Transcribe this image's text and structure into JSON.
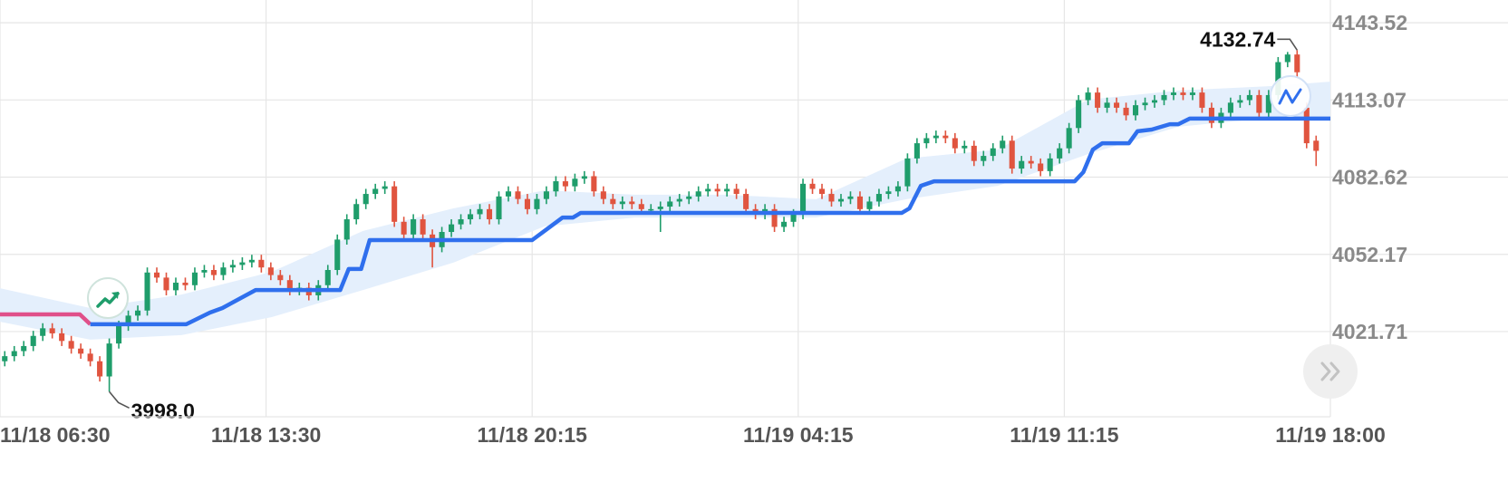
{
  "chart_data": {
    "type": "candlestick",
    "xlim": [
      0,
      140
    ],
    "ylim": [
      3988.1,
      4152.5
    ],
    "xticks": [
      {
        "value": 0,
        "label": "11/18 06:30"
      },
      {
        "value": 28,
        "label": "11/18 13:30"
      },
      {
        "value": 56,
        "label": "11/18 20:15"
      },
      {
        "value": 84,
        "label": "11/19 04:15"
      },
      {
        "value": 112,
        "label": "11/19 11:15"
      },
      {
        "value": 140,
        "label": "11/19 18:00"
      }
    ],
    "yticks": [
      4021.71,
      4052.17,
      4082.62,
      4113.07,
      4143.52
    ],
    "grid": true,
    "up_color": "#1f9d6b",
    "down_color": "#e0543f",
    "candles": {
      "open": [
        4010,
        4012,
        4014,
        4016,
        4020,
        4023,
        4021,
        4018,
        4015,
        4013,
        4010,
        4004,
        4017,
        4024,
        4028,
        4030,
        4045,
        4043,
        4038,
        4041,
        4040,
        4045,
        4046,
        4044,
        4047,
        4048,
        4049,
        4050,
        4047,
        4044,
        4042,
        4038,
        4039,
        4036,
        4040,
        4046,
        4058,
        4066,
        4072,
        4076,
        4078,
        4079,
        4065,
        4060,
        4066,
        4060,
        4055,
        4061,
        4064,
        4066,
        4068,
        4070,
        4066,
        4075,
        4077,
        4074,
        4070,
        4074,
        4077,
        4081,
        4079,
        4082,
        4083,
        4077,
        4074,
        4072,
        4073,
        4072,
        4070,
        4070,
        4071,
        4073,
        4074,
        4075,
        4077,
        4078,
        4077,
        4078,
        4076,
        4070,
        4068,
        4070,
        4063,
        4065,
        4068,
        4080,
        4078,
        4076,
        4073,
        4074,
        4075,
        4070,
        4073,
        4076,
        4077,
        4079,
        4090,
        4096,
        4098,
        4099,
        4098,
        4094,
        4095,
        4089,
        4091,
        4094,
        4097,
        4086,
        4089,
        4088,
        4085,
        4090,
        4094,
        4102,
        4113,
        4116,
        4110,
        4112,
        4110,
        4107,
        4111,
        4112,
        4113,
        4115,
        4116,
        4115,
        4116,
        4110,
        4104,
        4108,
        4112,
        4113,
        4115,
        4108,
        4115,
        4128,
        4131,
        4110,
        4097
      ],
      "high": [
        4014,
        4016,
        4018,
        4022,
        4025,
        4025,
        4023,
        4020,
        4017,
        4015,
        4012,
        4019,
        4026,
        4030,
        4032,
        4047,
        4047,
        4045,
        4043,
        4043,
        4047,
        4048,
        4048,
        4049,
        4050,
        4051,
        4052,
        4052,
        4049,
        4046,
        4044,
        4041,
        4041,
        4042,
        4048,
        4060,
        4068,
        4074,
        4078,
        4080,
        4081,
        4081,
        4067,
        4068,
        4068,
        4062,
        4063,
        4066,
        4068,
        4070,
        4072,
        4072,
        4077,
        4079,
        4079,
        4076,
        4076,
        4079,
        4083,
        4083,
        4084,
        4085,
        4085,
        4079,
        4076,
        4075,
        4075,
        4074,
        4072,
        4073,
        4075,
        4076,
        4077,
        4079,
        4080,
        4080,
        4080,
        4080,
        4078,
        4072,
        4072,
        4072,
        4067,
        4070,
        4082,
        4082,
        4080,
        4078,
        4076,
        4077,
        4077,
        4075,
        4078,
        4079,
        4081,
        4092,
        4098,
        4100,
        4101,
        4101,
        4100,
        4097,
        4097,
        4093,
        4096,
        4099,
        4099,
        4091,
        4091,
        4090,
        4092,
        4096,
        4104,
        4115,
        4118,
        4118,
        4114,
        4114,
        4112,
        4113,
        4114,
        4115,
        4117,
        4118,
        4118,
        4118,
        4118,
        4112,
        4110,
        4114,
        4115,
        4117,
        4117,
        4117,
        4130,
        4132,
        4132.74,
        4112,
        4099
      ],
      "low": [
        4008,
        4010,
        4012,
        4014,
        4018,
        4019,
        4016,
        4013,
        4011,
        4008,
        4002,
        3998.0,
        4015,
        4022,
        4026,
        4028,
        4041,
        4036,
        4036,
        4038,
        4038,
        4043,
        4042,
        4042,
        4045,
        4046,
        4047,
        4045,
        4042,
        4040,
        4036,
        4036,
        4034,
        4034,
        4038,
        4044,
        4056,
        4064,
        4070,
        4074,
        4076,
        4063,
        4058,
        4058,
        4058,
        4047,
        4053,
        4059,
        4062,
        4064,
        4066,
        4064,
        4064,
        4073,
        4072,
        4068,
        4068,
        4072,
        4075,
        4077,
        4077,
        4080,
        4075,
        4072,
        4070,
        4070,
        4070,
        4068,
        4068,
        4061,
        4069,
        4071,
        4072,
        4073,
        4075,
        4075,
        4075,
        4074,
        4068,
        4066,
        4066,
        4061,
        4061,
        4063,
        4066,
        4076,
        4074,
        4071,
        4071,
        4072,
        4068,
        4068,
        4071,
        4074,
        4075,
        4077,
        4088,
        4094,
        4096,
        4096,
        4092,
        4092,
        4087,
        4087,
        4089,
        4092,
        4084,
        4084,
        4086,
        4083,
        4083,
        4088,
        4092,
        4100,
        4111,
        4108,
        4108,
        4108,
        4105,
        4105,
        4109,
        4110,
        4111,
        4113,
        4113,
        4113,
        4108,
        4102,
        4102,
        4106,
        4110,
        4111,
        4106,
        4106,
        4113,
        4126,
        4122,
        4094,
        4087
      ],
      "close": [
        4012,
        4014,
        4016,
        4020,
        4023,
        4021,
        4018,
        4015,
        4013,
        4010,
        4004,
        4017,
        4024,
        4028,
        4030,
        4045,
        4043,
        4038,
        4041,
        4040,
        4045,
        4046,
        4044,
        4047,
        4048,
        4049,
        4050,
        4047,
        4044,
        4042,
        4038,
        4039,
        4036,
        4040,
        4046,
        4058,
        4066,
        4072,
        4076,
        4078,
        4079,
        4065,
        4060,
        4066,
        4060,
        4055,
        4061,
        4064,
        4066,
        4068,
        4070,
        4066,
        4075,
        4077,
        4074,
        4070,
        4074,
        4077,
        4081,
        4079,
        4082,
        4083,
        4077,
        4074,
        4072,
        4073,
        4072,
        4070,
        4070,
        4071,
        4073,
        4074,
        4075,
        4077,
        4078,
        4077,
        4078,
        4076,
        4070,
        4068,
        4070,
        4063,
        4065,
        4068,
        4080,
        4078,
        4076,
        4073,
        4074,
        4075,
        4070,
        4073,
        4076,
        4077,
        4079,
        4090,
        4096,
        4098,
        4099,
        4098,
        4094,
        4095,
        4089,
        4091,
        4094,
        4097,
        4086,
        4089,
        4088,
        4085,
        4090,
        4094,
        4102,
        4113,
        4116,
        4110,
        4112,
        4110,
        4107,
        4111,
        4112,
        4113,
        4115,
        4116,
        4115,
        4116,
        4110,
        4104,
        4108,
        4112,
        4113,
        4115,
        4108,
        4115,
        4128,
        4131,
        4124,
        4096,
        4093
      ]
    },
    "band": {
      "color": "#e4effc",
      "x": [
        0,
        9.5,
        19.1,
        28.6,
        38.2,
        47.7,
        57.3,
        66.8,
        76.3,
        85.9,
        95.4,
        105.0,
        114.5,
        124.0,
        133.6,
        140
      ],
      "upper": [
        4038.8,
        4031.0,
        4036.3,
        4045.3,
        4061.4,
        4070.3,
        4077.4,
        4075.7,
        4075.7,
        4073.9,
        4090.0,
        4093.5,
        4113.2,
        4116.8,
        4118.5,
        4120.3
      ],
      "lower": [
        4025.6,
        4018.5,
        4020.3,
        4027.4,
        4038.1,
        4048.9,
        4063.2,
        4066.7,
        4066.7,
        4066.7,
        4073.9,
        4079.2,
        4091.7,
        4102.5,
        4106.0,
        4106.0
      ]
    },
    "lines": [
      {
        "color": "#e0508a",
        "x": [
          0,
          8.4,
          9.5
        ],
        "values": [
          4028.5,
          4028.5,
          4024.6
        ]
      },
      {
        "color": "#2f6fed",
        "x": [
          9.5,
          19.6,
          22.1,
          23.4,
          26.9,
          35.8,
          36.7,
          38.0,
          38.9,
          56.0,
          59.2,
          60.3,
          61.1,
          94.9,
          95.7,
          96.9,
          98.3,
          113.1,
          114.0,
          115.0,
          116.0,
          118.8,
          119.7,
          121.2,
          123.1,
          124.0,
          125.2,
          140
        ],
        "values": [
          4024.6,
          4024.6,
          4029.2,
          4031.0,
          4038.1,
          4038.1,
          4046.4,
          4046.4,
          4057.8,
          4057.8,
          4066.7,
          4066.7,
          4068.5,
          4068.5,
          4070.3,
          4079.2,
          4081.0,
          4081.0,
          4084.6,
          4093.5,
          4096.0,
          4096.0,
          4100.7,
          4101.4,
          4103.5,
          4103.5,
          4105.7,
          4105.7
        ]
      }
    ],
    "extreme_labels": {
      "high": "4132.74",
      "low": "3998.0"
    }
  }
}
